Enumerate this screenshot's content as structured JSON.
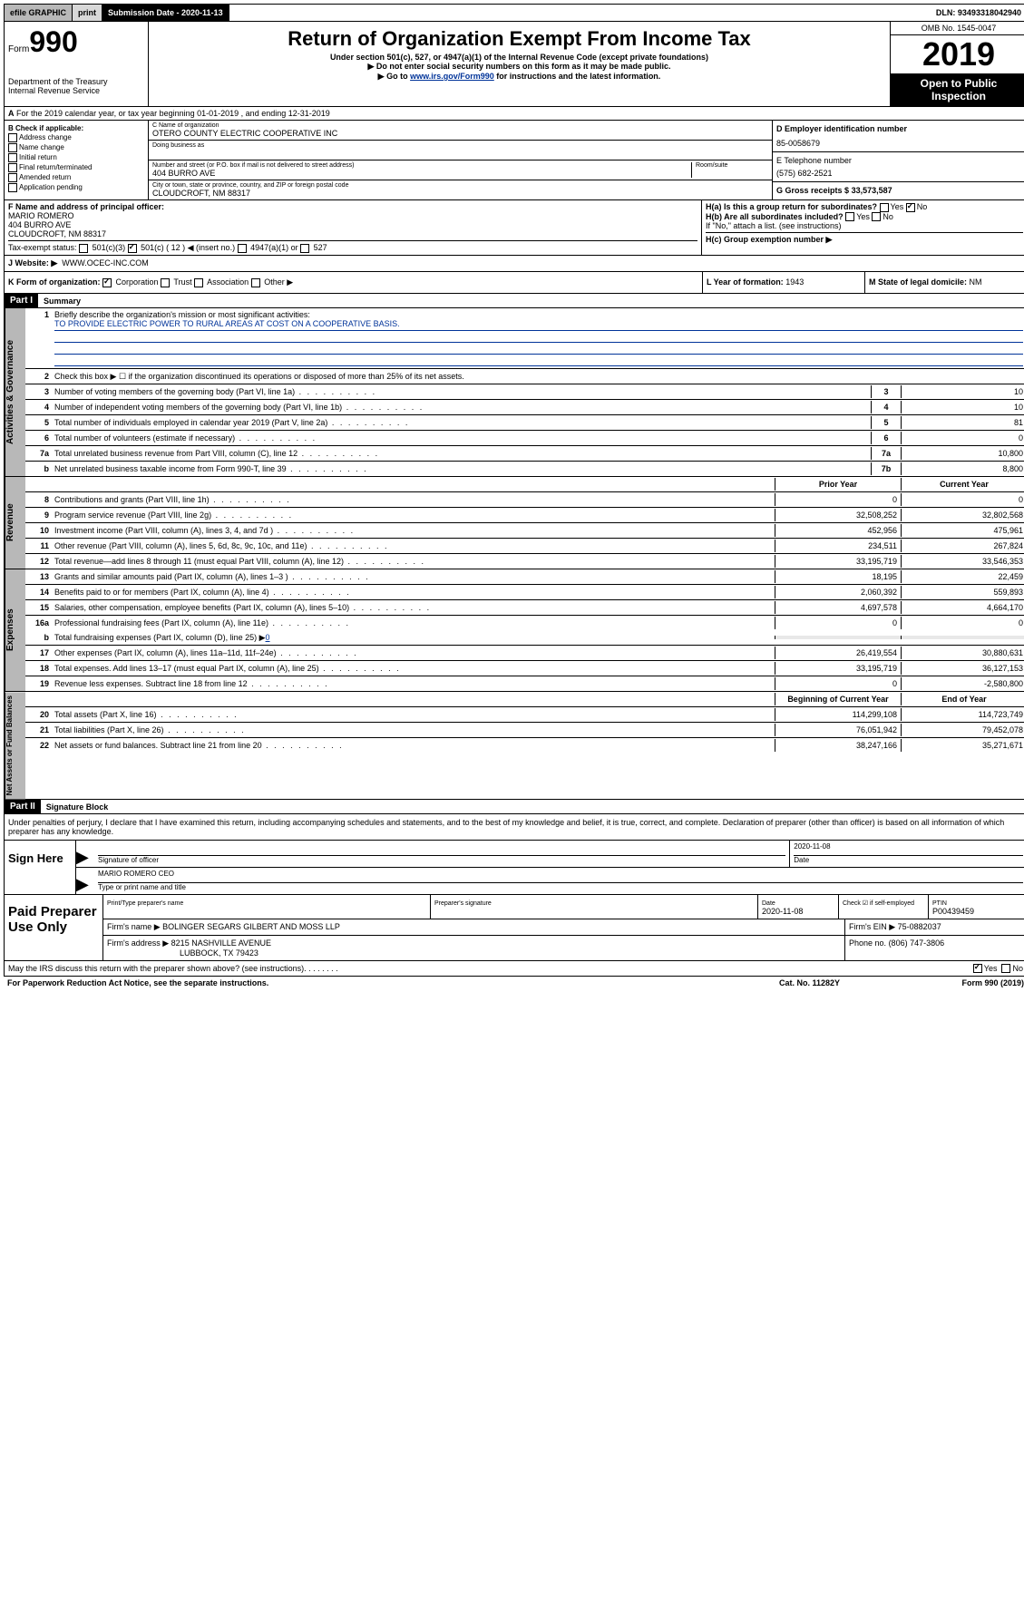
{
  "topbar": {
    "efile": "efile GRAPHIC",
    "print": "print",
    "sub_label": "Submission Date - 2020-11-13",
    "dln": "DLN: 93493318042940"
  },
  "header": {
    "form_prefix": "Form",
    "form_num": "990",
    "dept": "Department of the Treasury",
    "irs": "Internal Revenue Service",
    "title": "Return of Organization Exempt From Income Tax",
    "sub1": "Under section 501(c), 527, or 4947(a)(1) of the Internal Revenue Code (except private foundations)",
    "sub2": "▶ Do not enter social security numbers on this form as it may be made public.",
    "sub3_pre": "▶ Go to ",
    "sub3_link": "www.irs.gov/Form990",
    "sub3_post": " for instructions and the latest information.",
    "omb": "OMB No. 1545-0047",
    "year": "2019",
    "open": "Open to Public Inspection"
  },
  "section_a": "For the 2019 calendar year, or tax year beginning 01-01-2019   , and ending 12-31-2019",
  "col_b": {
    "label": "B Check if applicable:",
    "opts": [
      "Address change",
      "Name change",
      "Initial return",
      "Final return/terminated",
      "Amended return",
      "Application pending"
    ]
  },
  "col_c": {
    "name_label": "C Name of organization",
    "name": "OTERO COUNTY ELECTRIC COOPERATIVE INC",
    "dba_label": "Doing business as",
    "addr_label": "Number and street (or P.O. box if mail is not delivered to street address)",
    "room_label": "Room/suite",
    "addr": "404 BURRO AVE",
    "city_label": "City or town, state or province, country, and ZIP or foreign postal code",
    "city": "CLOUDCROFT, NM  88317"
  },
  "col_d": {
    "label": "D Employer identification number",
    "val": "85-0058679"
  },
  "col_e": {
    "label": "E Telephone number",
    "val": "(575) 682-2521"
  },
  "col_g": {
    "label": "G Gross receipts $",
    "val": "33,573,587"
  },
  "col_f": {
    "label": "F Name and address of principal officer:",
    "name": "MARIO ROMERO",
    "addr": "404 BURRO AVE",
    "city": "CLOUDCROFT, NM  88317"
  },
  "col_h": {
    "a": "H(a)  Is this a group return for subordinates?",
    "b": "H(b)  Are all subordinates included?",
    "b_note": "If \"No,\" attach a list. (see instructions)",
    "c": "H(c)  Group exemption number ▶"
  },
  "tax_exempt": {
    "label": "Tax-exempt status:",
    "c3": "501(c)(3)",
    "c_insert": "501(c) ( 12 ) ◀ (insert no.)",
    "a1": "4947(a)(1) or",
    "527": "527"
  },
  "website": {
    "label": "Website: ▶",
    "val": "WWW.OCEC-INC.COM"
  },
  "row_k": "K Form of organization:",
  "row_k_opts": [
    "Corporation",
    "Trust",
    "Association",
    "Other ▶"
  ],
  "row_l": {
    "label": "L Year of formation:",
    "val": "1943"
  },
  "row_m": {
    "label": "M State of legal domicile:",
    "val": "NM"
  },
  "part1": {
    "label": "Part I",
    "title": "Summary"
  },
  "activities": {
    "tab": "Activities & Governance",
    "q1": "Briefly describe the organization's mission or most significant activities:",
    "mission": "TO PROVIDE ELECTRIC POWER TO RURAL AREAS AT COST ON A COOPERATIVE BASIS.",
    "q2": "Check this box ▶ ☐ if the organization discontinued its operations or disposed of more than 25% of its net assets.",
    "rows": [
      {
        "n": "3",
        "d": "Number of voting members of the governing body (Part VI, line 1a)",
        "c": "3",
        "v": "10"
      },
      {
        "n": "4",
        "d": "Number of independent voting members of the governing body (Part VI, line 1b)",
        "c": "4",
        "v": "10"
      },
      {
        "n": "5",
        "d": "Total number of individuals employed in calendar year 2019 (Part V, line 2a)",
        "c": "5",
        "v": "81"
      },
      {
        "n": "6",
        "d": "Total number of volunteers (estimate if necessary)",
        "c": "6",
        "v": "0"
      },
      {
        "n": "7a",
        "d": "Total unrelated business revenue from Part VIII, column (C), line 12",
        "c": "7a",
        "v": "10,800"
      },
      {
        "n": "b",
        "d": "Net unrelated business taxable income from Form 990-T, line 39",
        "c": "7b",
        "v": "8,800"
      }
    ]
  },
  "revenue": {
    "tab": "Revenue",
    "h1": "Prior Year",
    "h2": "Current Year",
    "rows": [
      {
        "n": "8",
        "d": "Contributions and grants (Part VIII, line 1h)",
        "v1": "0",
        "v2": "0"
      },
      {
        "n": "9",
        "d": "Program service revenue (Part VIII, line 2g)",
        "v1": "32,508,252",
        "v2": "32,802,568"
      },
      {
        "n": "10",
        "d": "Investment income (Part VIII, column (A), lines 3, 4, and 7d )",
        "v1": "452,956",
        "v2": "475,961"
      },
      {
        "n": "11",
        "d": "Other revenue (Part VIII, column (A), lines 5, 6d, 8c, 9c, 10c, and 11e)",
        "v1": "234,511",
        "v2": "267,824"
      },
      {
        "n": "12",
        "d": "Total revenue—add lines 8 through 11 (must equal Part VIII, column (A), line 12)",
        "v1": "33,195,719",
        "v2": "33,546,353"
      }
    ]
  },
  "expenses": {
    "tab": "Expenses",
    "rows": [
      {
        "n": "13",
        "d": "Grants and similar amounts paid (Part IX, column (A), lines 1–3 )",
        "v1": "18,195",
        "v2": "22,459"
      },
      {
        "n": "14",
        "d": "Benefits paid to or for members (Part IX, column (A), line 4)",
        "v1": "2,060,392",
        "v2": "559,893"
      },
      {
        "n": "15",
        "d": "Salaries, other compensation, employee benefits (Part IX, column (A), lines 5–10)",
        "v1": "4,697,578",
        "v2": "4,664,170"
      },
      {
        "n": "16a",
        "d": "Professional fundraising fees (Part IX, column (A), line 11e)",
        "v1": "0",
        "v2": "0"
      }
    ],
    "b_line": "Total fundraising expenses (Part IX, column (D), line 25) ▶",
    "b_val": "0",
    "rows2": [
      {
        "n": "17",
        "d": "Other expenses (Part IX, column (A), lines 11a–11d, 11f–24e)",
        "v1": "26,419,554",
        "v2": "30,880,631"
      },
      {
        "n": "18",
        "d": "Total expenses. Add lines 13–17 (must equal Part IX, column (A), line 25)",
        "v1": "33,195,719",
        "v2": "36,127,153"
      },
      {
        "n": "19",
        "d": "Revenue less expenses. Subtract line 18 from line 12",
        "v1": "0",
        "v2": "-2,580,800"
      }
    ]
  },
  "netassets": {
    "tab": "Net Assets or Fund Balances",
    "h1": "Beginning of Current Year",
    "h2": "End of Year",
    "rows": [
      {
        "n": "20",
        "d": "Total assets (Part X, line 16)",
        "v1": "114,299,108",
        "v2": "114,723,749"
      },
      {
        "n": "21",
        "d": "Total liabilities (Part X, line 26)",
        "v1": "76,051,942",
        "v2": "79,452,078"
      },
      {
        "n": "22",
        "d": "Net assets or fund balances. Subtract line 21 from line 20",
        "v1": "38,247,166",
        "v2": "35,271,671"
      }
    ]
  },
  "part2": {
    "label": "Part II",
    "title": "Signature Block"
  },
  "perjury": "Under penalties of perjury, I declare that I have examined this return, including accompanying schedules and statements, and to the best of my knowledge and belief, it is true, correct, and complete. Declaration of preparer (other than officer) is based on all information of which preparer has any knowledge.",
  "sign": {
    "label": "Sign Here",
    "sig_label": "Signature of officer",
    "date": "2020-11-08",
    "date_label": "Date",
    "name": "MARIO ROMERO CEO",
    "name_label": "Type or print name and title"
  },
  "paid": {
    "label": "Paid Preparer Use Only",
    "h_name": "Print/Type preparer's name",
    "h_sig": "Preparer's signature",
    "h_date": "Date",
    "date": "2020-11-08",
    "check_label": "Check ☑ if self-employed",
    "ptin_label": "PTIN",
    "ptin": "P00439459",
    "firm_name_label": "Firm's name    ▶",
    "firm_name": "BOLINGER SEGARS GILBERT AND MOSS LLP",
    "firm_ein_label": "Firm's EIN ▶",
    "firm_ein": "75-0882037",
    "firm_addr_label": "Firm's address ▶",
    "firm_addr1": "8215 NASHVILLE AVENUE",
    "firm_addr2": "LUBBOCK, TX  79423",
    "phone_label": "Phone no.",
    "phone": "(806) 747-3806"
  },
  "discuss": "May the IRS discuss this return with the preparer shown above? (see instructions)",
  "footer": {
    "left": "For Paperwork Reduction Act Notice, see the separate instructions.",
    "cat": "Cat. No. 11282Y",
    "form": "Form 990 (2019)"
  },
  "yes": "Yes",
  "no": "No"
}
